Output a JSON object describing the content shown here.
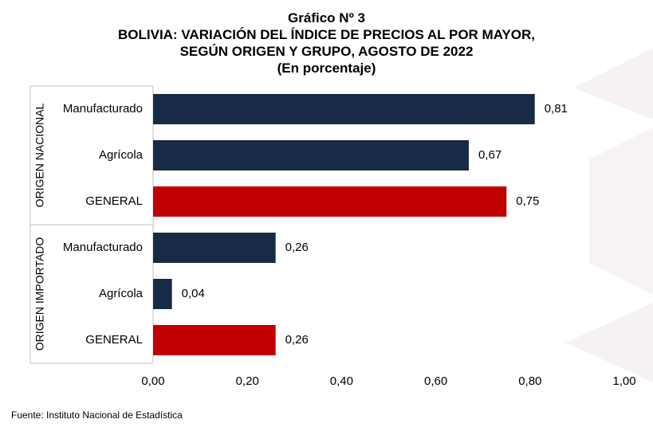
{
  "title": {
    "line1": "Gráfico Nº 3",
    "line2": "BOLIVIA: VARIACIÓN DEL ÍNDICE DE PRECIOS AL POR MAYOR,",
    "line3": "SEGÚN ORIGEN Y GRUPO, AGOSTO DE 2022",
    "line4": "(En porcentaje)"
  },
  "source": "Fuente: Instituto Nacional de Estadística",
  "colors": {
    "group_bar": "#172a46",
    "general_bar": "#c00000",
    "watermark": "#f5f1f1"
  },
  "chart_data": {
    "type": "bar",
    "orientation": "horizontal",
    "groups": [
      {
        "label": "ORIGEN NACIONAL",
        "categories": [
          "Manufacturado",
          "Agrícola",
          "GENERAL"
        ],
        "values": [
          0.81,
          0.67,
          0.75
        ],
        "value_labels": [
          "0,81",
          "0,67",
          "0,75"
        ]
      },
      {
        "label": "ORIGEN IMPORTADO",
        "categories": [
          "Manufacturado",
          "Agrícola",
          "GENERAL"
        ],
        "values": [
          0.26,
          0.04,
          0.26
        ],
        "value_labels": [
          "0,26",
          "0,04",
          "0,26"
        ]
      }
    ],
    "xlim": [
      0,
      1
    ],
    "xticks": [
      0,
      0.2,
      0.4,
      0.6,
      0.8,
      1.0
    ],
    "xtick_labels": [
      "0,00",
      "0,20",
      "0,40",
      "0,60",
      "0,80",
      "1,00"
    ],
    "grid": false,
    "legend": "none"
  }
}
